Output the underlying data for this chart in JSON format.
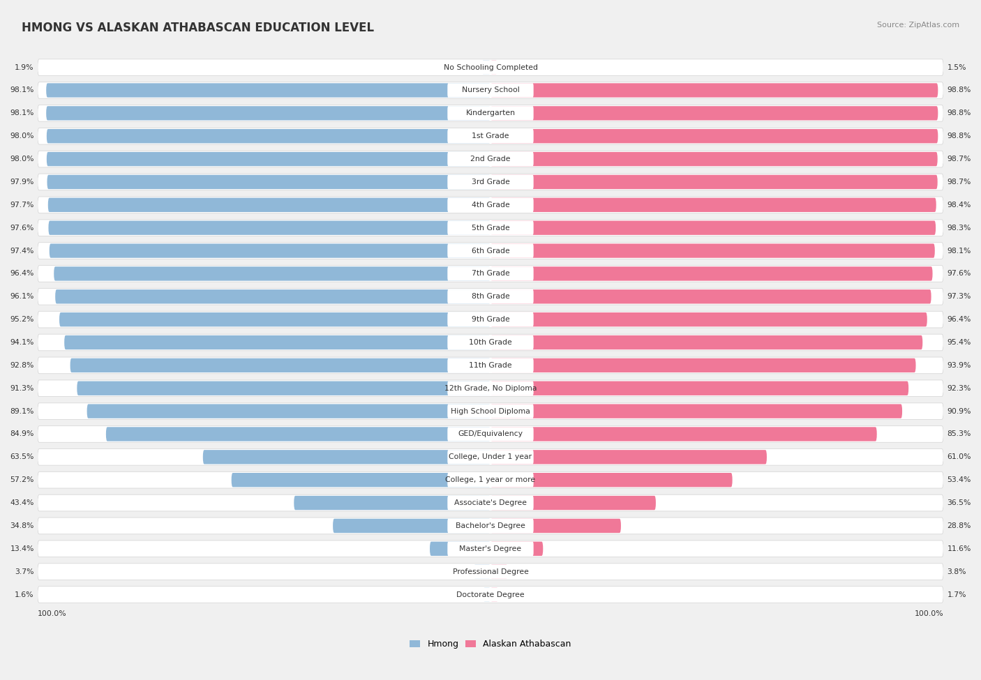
{
  "title": "HMONG VS ALASKAN ATHABASCAN EDUCATION LEVEL",
  "source": "Source: ZipAtlas.com",
  "categories": [
    "No Schooling Completed",
    "Nursery School",
    "Kindergarten",
    "1st Grade",
    "2nd Grade",
    "3rd Grade",
    "4th Grade",
    "5th Grade",
    "6th Grade",
    "7th Grade",
    "8th Grade",
    "9th Grade",
    "10th Grade",
    "11th Grade",
    "12th Grade, No Diploma",
    "High School Diploma",
    "GED/Equivalency",
    "College, Under 1 year",
    "College, 1 year or more",
    "Associate's Degree",
    "Bachelor's Degree",
    "Master's Degree",
    "Professional Degree",
    "Doctorate Degree"
  ],
  "hmong": [
    1.9,
    98.1,
    98.1,
    98.0,
    98.0,
    97.9,
    97.7,
    97.6,
    97.4,
    96.4,
    96.1,
    95.2,
    94.1,
    92.8,
    91.3,
    89.1,
    84.9,
    63.5,
    57.2,
    43.4,
    34.8,
    13.4,
    3.7,
    1.6
  ],
  "alaskan": [
    1.5,
    98.8,
    98.8,
    98.8,
    98.7,
    98.7,
    98.4,
    98.3,
    98.1,
    97.6,
    97.3,
    96.4,
    95.4,
    93.9,
    92.3,
    90.9,
    85.3,
    61.0,
    53.4,
    36.5,
    28.8,
    11.6,
    3.8,
    1.7
  ],
  "hmong_color": "#90b8d8",
  "alaskan_color": "#f07898",
  "bg_color": "#f0f0f0",
  "row_bg_color": "#ffffff",
  "legend_hmong": "Hmong",
  "legend_alaskan": "Alaskan Athabascan",
  "label_fontsize": 7.8,
  "value_fontsize": 7.8,
  "title_fontsize": 12,
  "source_fontsize": 8
}
